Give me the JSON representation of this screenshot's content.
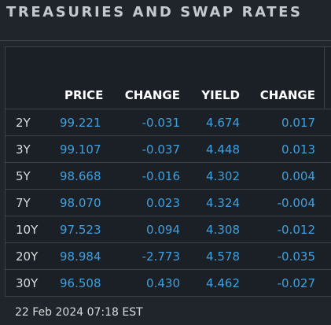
{
  "title": "TREASURIES AND SWAP RATES",
  "columns": {
    "price": "PRICE",
    "change1": "CHANGE",
    "yield": "YIELD",
    "change2": "CHANGE"
  },
  "rows": [
    {
      "term": "2Y",
      "price": "99.221",
      "change1": "-0.031",
      "yield": "4.674",
      "change2": "0.017"
    },
    {
      "term": "3Y",
      "price": "99.107",
      "change1": "-0.037",
      "yield": "4.448",
      "change2": "0.013"
    },
    {
      "term": "5Y",
      "price": "98.668",
      "change1": "-0.016",
      "yield": "4.302",
      "change2": "0.004"
    },
    {
      "term": "7Y",
      "price": "98.070",
      "change1": "0.023",
      "yield": "4.324",
      "change2": "-0.004"
    },
    {
      "term": "10Y",
      "price": "97.523",
      "change1": "0.094",
      "yield": "4.308",
      "change2": "-0.012"
    },
    {
      "term": "20Y",
      "price": "98.984",
      "change1": "-2.773",
      "yield": "4.578",
      "change2": "-0.035"
    },
    {
      "term": "30Y",
      "price": "96.508",
      "change1": "0.430",
      "yield": "4.462",
      "change2": "-0.027"
    }
  ],
  "timestamp": "22 Feb 2024 07:18 EST",
  "colors": {
    "background": "#1f252b",
    "value_text": "#3ea0e0",
    "header_text": "#ffffff",
    "title_text": "#c4c9cf"
  }
}
